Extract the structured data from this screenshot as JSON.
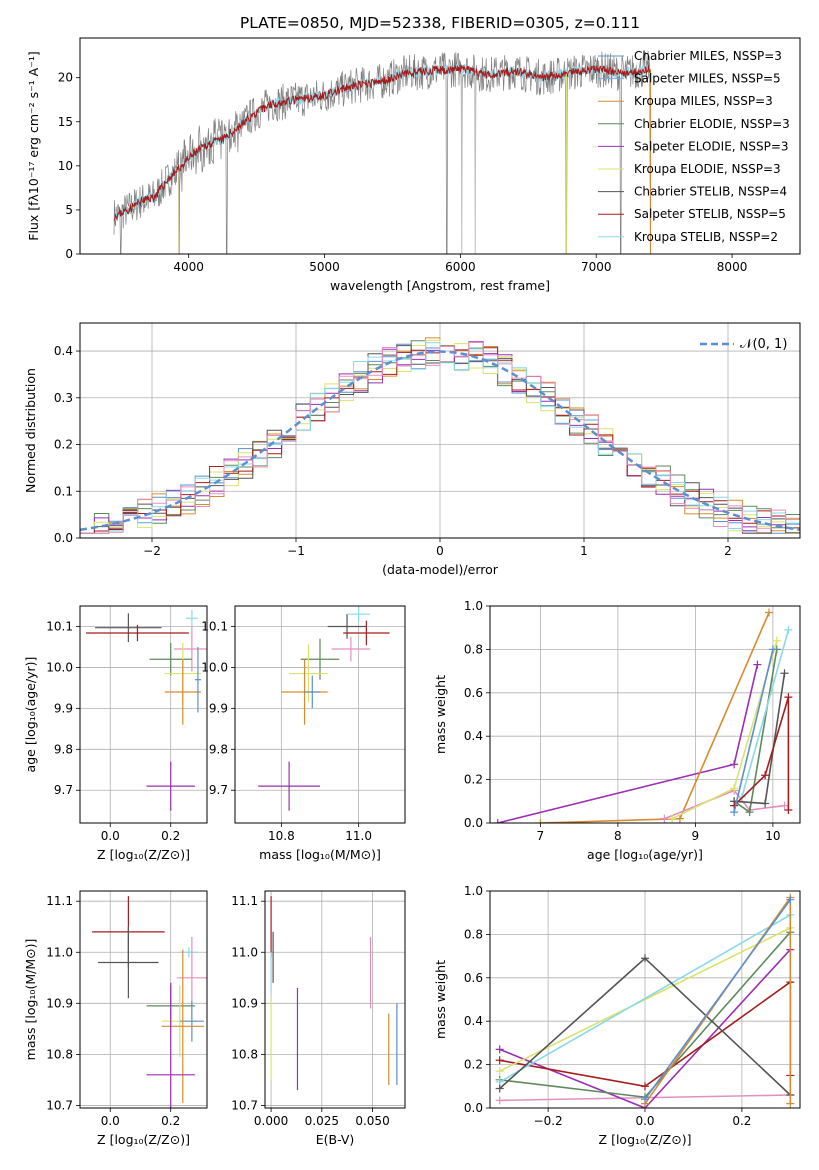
{
  "figure_title": "PLATE=0850, MJD=52338, FIBERID=0305, z=0.111",
  "series_colors": {
    "chabrier_miles": "#5b8fd0",
    "salpeter_miles": "#7aa7e0",
    "kroupa_miles": "#d98a2e",
    "chabrier_elodie": "#5c8a5c",
    "salpeter_elodie": "#9b2fb3",
    "kroupa_elodie": "#d9e36b",
    "chabrier_stelib": "#555555",
    "salpeter_stelib": "#a61c1c",
    "kroupa_stelib": "#8ad9e6",
    "pink": "#e58fc0",
    "data": "#7f7f7f",
    "normal_curve": "#5b8fd0"
  },
  "chart_data": [
    {
      "id": "spectrum",
      "type": "line",
      "xlabel": "wavelength [Angstrom, rest frame]",
      "ylabel": "Flux [fλ10⁻¹⁷ erg cm⁻² s⁻¹ A⁻¹]",
      "xlim": [
        3200,
        8500
      ],
      "ylim": [
        0,
        24.5
      ],
      "xticks": [
        4000,
        5000,
        6000,
        7000,
        8000
      ],
      "yticks": [
        0,
        5,
        10,
        15,
        20
      ],
      "grid": false,
      "legend_position": "right",
      "series": [
        {
          "name": "Chabrier MILES, N_SSP=3",
          "color_key": "chabrier_miles"
        },
        {
          "name": "Salpeter MILES, N_SSP=5",
          "color_key": "salpeter_miles"
        },
        {
          "name": "Kroupa MILES, N_SSP=3",
          "color_key": "kroupa_miles"
        },
        {
          "name": "Chabrier ELODIE, N_SSP=3",
          "color_key": "chabrier_elodie"
        },
        {
          "name": "Salpeter ELODIE, N_SSP=3",
          "color_key": "salpeter_elodie"
        },
        {
          "name": "Kroupa ELODIE, N_SSP=3",
          "color_key": "kroupa_elodie"
        },
        {
          "name": "Chabrier STELIB, N_SSP=4",
          "color_key": "chabrier_stelib"
        },
        {
          "name": "Salpeter STELIB, N_SSP=5",
          "color_key": "salpeter_stelib"
        },
        {
          "name": "Kroupa STELIB, N_SSP=2",
          "color_key": "kroupa_stelib"
        }
      ],
      "continuum_x": [
        3450,
        3550,
        3650,
        3750,
        3850,
        3950,
        4050,
        4150,
        4250,
        4350,
        4450,
        4600,
        4800,
        5000,
        5200,
        5400,
        5600,
        5800,
        6000,
        6200,
        6400,
        6600,
        6800,
        7000,
        7200,
        7400
      ],
      "continuum_y": [
        4.3,
        5.0,
        6.0,
        6.5,
        8.5,
        10.0,
        11.5,
        12.5,
        13.0,
        14.2,
        15.5,
        17.0,
        17.5,
        18.0,
        19.0,
        19.5,
        20.5,
        20.8,
        21.0,
        20.3,
        20.8,
        20.0,
        20.5,
        21.0,
        20.5,
        21.0
      ],
      "dropouts_x": [
        3500,
        3930,
        4280,
        5900,
        6010,
        6110,
        6780,
        7180,
        7400
      ]
    },
    {
      "id": "residual_histogram",
      "type": "step",
      "xlabel": "(data-model)/error",
      "ylabel": "Normed distribution",
      "xlim": [
        -2.5,
        2.5
      ],
      "ylim": [
        0,
        0.46
      ],
      "xticks": [
        -2,
        -1,
        0,
        1,
        2
      ],
      "yticks": [
        0.0,
        0.1,
        0.2,
        0.3,
        0.4
      ],
      "grid": true,
      "legend": "𝒩(0, 1)",
      "legend_position": "top-right",
      "bin_width": 0.1,
      "bin_start": -2.5
    },
    {
      "id": "age_vs_Z",
      "type": "errorbar",
      "xlabel": "Z [log₁₀(Z/Z⊙)]",
      "ylabel": "age  [log₁₀(age/yr)]",
      "xlim": [
        -0.1,
        0.32
      ],
      "ylim": [
        9.62,
        10.15
      ],
      "xticks": [
        0.0,
        0.2
      ],
      "yticks": [
        9.7,
        9.8,
        9.9,
        10.0,
        10.1
      ],
      "grid": true
    },
    {
      "id": "age_vs_mass",
      "type": "errorbar",
      "xlabel": "mass [log₁₀(M/M⊙)]",
      "ylabel": "",
      "xlim": [
        10.68,
        11.12
      ],
      "ylim": [
        9.62,
        10.15
      ],
      "xticks": [
        10.8,
        11.0
      ],
      "yticks": [
        9.7,
        9.8,
        9.9,
        10.0,
        10.1
      ],
      "grid": true
    },
    {
      "id": "mass_weight_vs_age",
      "type": "line",
      "xlabel": "age  [log₁₀(age/yr)]",
      "ylabel": "mass weight",
      "xlim": [
        6.35,
        10.35
      ],
      "ylim": [
        0.0,
        1.0
      ],
      "xticks": [
        7,
        8,
        9,
        10
      ],
      "yticks": [
        0.0,
        0.2,
        0.4,
        0.6,
        0.8,
        1.0
      ],
      "grid": true
    },
    {
      "id": "mass_vs_Z",
      "type": "errorbar",
      "xlabel": "Z [log₁₀(Z/Z⊙)]",
      "ylabel": "mass [log₁₀(M/M⊙)]",
      "xlim": [
        -0.1,
        0.32
      ],
      "ylim": [
        10.695,
        11.12
      ],
      "xticks": [
        0.0,
        0.2
      ],
      "yticks": [
        10.7,
        10.8,
        10.9,
        11.0,
        11.1
      ],
      "grid": true
    },
    {
      "id": "mass_vs_EBV",
      "type": "errorbar",
      "xlabel": "E(B-V)",
      "ylabel": "",
      "xlim": [
        -0.003,
        0.066
      ],
      "ylim": [
        10.695,
        11.12
      ],
      "xticks": [
        0.0,
        0.025,
        0.05
      ],
      "xtick_labels": [
        "0.000",
        "0.025",
        "0.050"
      ],
      "yticks": [
        10.7,
        10.8,
        10.9,
        11.0,
        11.1
      ],
      "grid": true
    },
    {
      "id": "mass_weight_vs_Z",
      "type": "line",
      "xlabel": "Z [log₁₀(Z/Z⊙)]",
      "ylabel": "mass weight",
      "xlim": [
        -0.32,
        0.32
      ],
      "ylim": [
        0.0,
        1.0
      ],
      "xticks": [
        -0.2,
        0.0,
        0.2
      ],
      "yticks": [
        0.0,
        0.2,
        0.4,
        0.6,
        0.8,
        1.0
      ],
      "grid": true
    }
  ]
}
